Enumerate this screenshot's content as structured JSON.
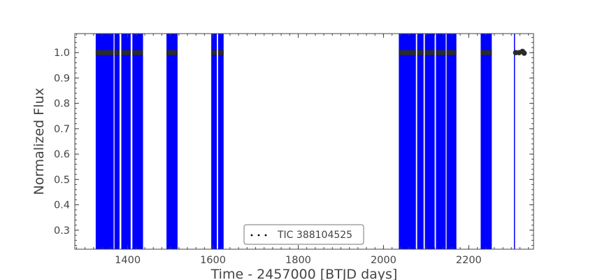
{
  "chart_data": {
    "type": "scatter",
    "title": "",
    "xlabel": "Time - 2457000 [BTJD days]",
    "ylabel": "Normalized Flux",
    "xlim": [
      1276,
      2352
    ],
    "ylim": [
      0.225,
      1.075
    ],
    "x_major_ticks": [
      1400,
      1600,
      1800,
      2000,
      2200
    ],
    "y_major_ticks": [
      0.3,
      0.4,
      0.5,
      0.6,
      0.7,
      0.8,
      0.9,
      1.0
    ],
    "x_minor_step": 20,
    "y_minor_step": 0.02,
    "grid": false,
    "legend_position": "lower center",
    "series": [
      {
        "name": "TIC 388104525",
        "marker": "dot",
        "color": "#000000",
        "errorbar_color": "#0000ff",
        "x_ranges_covered": [
          [
            1325,
            1367
          ],
          [
            1369,
            1381
          ],
          [
            1385,
            1407
          ],
          [
            1411,
            1436
          ],
          [
            1491,
            1517
          ],
          [
            1596,
            1609
          ],
          [
            1612,
            1625
          ],
          [
            2036,
            2076
          ],
          [
            2079,
            2094
          ],
          [
            2097,
            2120
          ],
          [
            2123,
            2146
          ],
          [
            2148,
            2171
          ],
          [
            2228,
            2254
          ],
          [
            2306,
            2308
          ]
        ],
        "flux_typical": 1.0,
        "flux_error_span": [
          0.225,
          1.075
        ],
        "outlier_points": [
          {
            "x": 2310,
            "y": 1.0
          },
          {
            "x": 2318,
            "y": 1.0
          },
          {
            "x": 2326,
            "y": 1.005
          },
          {
            "x": 2330,
            "y": 0.998
          }
        ]
      }
    ]
  }
}
